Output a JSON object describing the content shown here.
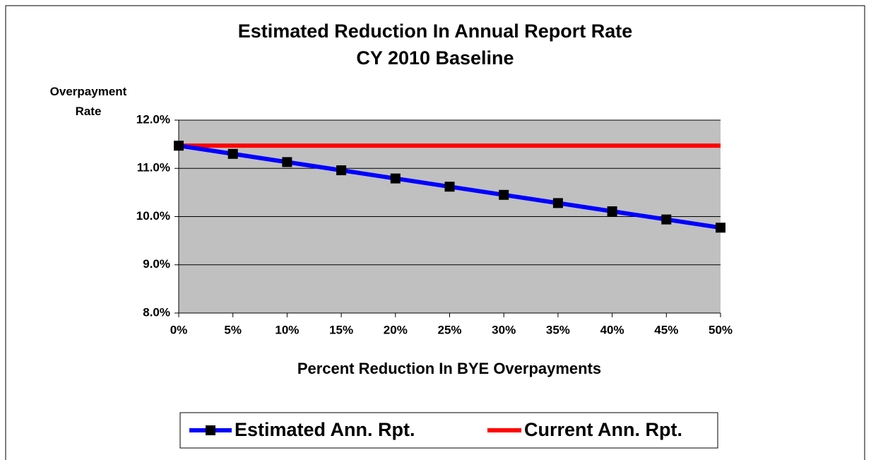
{
  "chart_data": {
    "type": "line",
    "title": "Estimated Reduction In Annual Report Rate",
    "subtitle": "CY 2010 Baseline",
    "y_label": "Overpayment Rate",
    "x_label": "Percent Reduction In BYE Overpayments",
    "x": [
      0,
      5,
      10,
      15,
      20,
      25,
      30,
      35,
      40,
      45,
      50
    ],
    "series": [
      {
        "name": "Estimated Ann. Rpt.",
        "color": "#0000ff",
        "marker": "square",
        "values": [
          11.47,
          11.3,
          11.13,
          10.96,
          10.79,
          10.62,
          10.45,
          10.28,
          10.11,
          9.94,
          9.77
        ]
      },
      {
        "name": "Current Ann. Rpt.",
        "color": "#ff0000",
        "values": [
          11.47,
          11.47,
          11.47,
          11.47,
          11.47,
          11.47,
          11.47,
          11.47,
          11.47,
          11.47,
          11.47
        ]
      }
    ],
    "xlim": [
      0,
      50
    ],
    "xticks": [
      {
        "value": 0,
        "label": "0%"
      },
      {
        "value": 5,
        "label": "5%"
      },
      {
        "value": 10,
        "label": "10%"
      },
      {
        "value": 15,
        "label": "15%"
      },
      {
        "value": 20,
        "label": "20%"
      },
      {
        "value": 25,
        "label": "25%"
      },
      {
        "value": 30,
        "label": "30%"
      },
      {
        "value": 35,
        "label": "35%"
      },
      {
        "value": 40,
        "label": "40%"
      },
      {
        "value": 45,
        "label": "45%"
      },
      {
        "value": 50,
        "label": "50%"
      }
    ],
    "ylim": [
      8,
      12
    ],
    "yticks": [
      {
        "value": 8,
        "label": "8.0%"
      },
      {
        "value": 9,
        "label": "9.0%"
      },
      {
        "value": 10,
        "label": "10.0%"
      },
      {
        "value": 11,
        "label": "11.0%"
      },
      {
        "value": 12,
        "label": "12.0%"
      }
    ],
    "grid": true,
    "plot_background": "#c0c0c0",
    "legend": "bottom"
  }
}
